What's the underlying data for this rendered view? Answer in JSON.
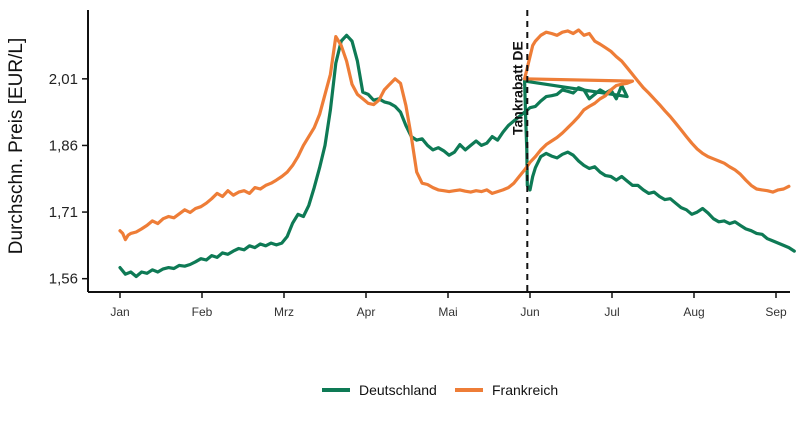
{
  "chart_data": {
    "type": "line",
    "title": "",
    "xlabel": "",
    "ylabel": "Durchschn. Preis [EUR/L]",
    "x_ticks": [
      "Jan",
      "Feb",
      "Mrz",
      "Apr",
      "Mai",
      "Jun",
      "Jul",
      "Aug",
      "Sep"
    ],
    "x_range_days": [
      -2,
      245
    ],
    "y_ticks": [
      1.56,
      1.71,
      1.86,
      2.01
    ],
    "y_tick_labels": [
      "1,56",
      "1,71",
      "1,86",
      "2,01"
    ],
    "ylim": [
      1.53,
      2.165
    ],
    "grid": false,
    "legend_position": "bottom",
    "annotation": {
      "label": "Tankrabatt DE",
      "x_day": 151
    },
    "series": [
      {
        "name": "Deutschland",
        "color": "#0e7a55",
        "points": [
          [
            0,
            1.585
          ],
          [
            2,
            1.57
          ],
          [
            4,
            1.575
          ],
          [
            6,
            1.565
          ],
          [
            8,
            1.575
          ],
          [
            10,
            1.572
          ],
          [
            12,
            1.58
          ],
          [
            14,
            1.575
          ],
          [
            16,
            1.582
          ],
          [
            18,
            1.585
          ],
          [
            20,
            1.583
          ],
          [
            22,
            1.59
          ],
          [
            24,
            1.588
          ],
          [
            26,
            1.592
          ],
          [
            28,
            1.598
          ],
          [
            30,
            1.605
          ],
          [
            32,
            1.602
          ],
          [
            34,
            1.612
          ],
          [
            36,
            1.608
          ],
          [
            38,
            1.618
          ],
          [
            40,
            1.615
          ],
          [
            42,
            1.622
          ],
          [
            44,
            1.628
          ],
          [
            46,
            1.625
          ],
          [
            48,
            1.634
          ],
          [
            50,
            1.63
          ],
          [
            52,
            1.638
          ],
          [
            54,
            1.634
          ],
          [
            56,
            1.64
          ],
          [
            58,
            1.636
          ],
          [
            60,
            1.64
          ],
          [
            62,
            1.655
          ],
          [
            64,
            1.685
          ],
          [
            66,
            1.705
          ],
          [
            68,
            1.7
          ],
          [
            70,
            1.725
          ],
          [
            72,
            1.765
          ],
          [
            74,
            1.81
          ],
          [
            76,
            1.86
          ],
          [
            78,
            1.94
          ],
          [
            80,
            2.045
          ],
          [
            82,
            2.095
          ],
          [
            84,
            2.108
          ],
          [
            86,
            2.095
          ],
          [
            88,
            2.05
          ],
          [
            90,
            1.98
          ],
          [
            92,
            1.975
          ],
          [
            94,
            1.962
          ],
          [
            96,
            1.965
          ],
          [
            98,
            1.958
          ],
          [
            100,
            1.955
          ],
          [
            102,
            1.948
          ],
          [
            104,
            1.935
          ],
          [
            106,
            1.905
          ],
          [
            108,
            1.88
          ],
          [
            110,
            1.872
          ],
          [
            112,
            1.875
          ],
          [
            114,
            1.86
          ],
          [
            116,
            1.85
          ],
          [
            118,
            1.855
          ],
          [
            120,
            1.848
          ],
          [
            122,
            1.838
          ],
          [
            124,
            1.845
          ],
          [
            126,
            1.862
          ],
          [
            128,
            1.85
          ],
          [
            130,
            1.86
          ],
          [
            132,
            1.87
          ],
          [
            134,
            1.86
          ],
          [
            136,
            1.865
          ],
          [
            138,
            1.88
          ],
          [
            140,
            1.872
          ],
          [
            142,
            1.89
          ],
          [
            144,
            1.905
          ],
          [
            146,
            1.915
          ],
          [
            148,
            1.925
          ],
          [
            150,
            1.935
          ],
          [
            152,
            1.945
          ],
          [
            154,
            1.948
          ],
          [
            156,
            1.96
          ],
          [
            158,
            1.97
          ],
          [
            160,
            1.972
          ],
          [
            162,
            1.975
          ],
          [
            164,
            1.985
          ],
          [
            166,
            1.982
          ],
          [
            168,
            1.978
          ],
          [
            170,
            1.99
          ],
          [
            172,
            1.985
          ],
          [
            174,
            1.965
          ],
          [
            176,
            1.975
          ],
          [
            178,
            1.985
          ],
          [
            180,
            1.978
          ],
          [
            182,
            1.985
          ],
          [
            184,
            1.965
          ],
          [
            186,
            1.995
          ],
          [
            188,
            1.97
          ],
          [
            150,
            2.005
          ],
          [
            150.4,
            1.92
          ],
          [
            150.8,
            1.85
          ],
          [
            151,
            1.77
          ],
          [
            152,
            1.76
          ],
          [
            153,
            1.79
          ],
          [
            154,
            1.81
          ],
          [
            156,
            1.835
          ],
          [
            158,
            1.842
          ],
          [
            160,
            1.836
          ],
          [
            162,
            1.832
          ],
          [
            164,
            1.84
          ],
          [
            166,
            1.845
          ],
          [
            168,
            1.838
          ],
          [
            170,
            1.825
          ],
          [
            172,
            1.815
          ],
          [
            174,
            1.808
          ],
          [
            176,
            1.812
          ],
          [
            178,
            1.8
          ],
          [
            180,
            1.792
          ],
          [
            182,
            1.79
          ],
          [
            184,
            1.782
          ],
          [
            186,
            1.79
          ],
          [
            188,
            1.78
          ],
          [
            190,
            1.77
          ],
          [
            192,
            1.77
          ],
          [
            194,
            1.76
          ],
          [
            196,
            1.752
          ],
          [
            198,
            1.755
          ],
          [
            200,
            1.745
          ],
          [
            202,
            1.738
          ],
          [
            204,
            1.74
          ],
          [
            206,
            1.73
          ],
          [
            208,
            1.72
          ],
          [
            210,
            1.715
          ],
          [
            212,
            1.705
          ],
          [
            214,
            1.71
          ],
          [
            216,
            1.718
          ],
          [
            218,
            1.708
          ],
          [
            220,
            1.695
          ],
          [
            222,
            1.688
          ],
          [
            224,
            1.69
          ],
          [
            226,
            1.684
          ],
          [
            228,
            1.688
          ],
          [
            230,
            1.68
          ],
          [
            232,
            1.672
          ],
          [
            234,
            1.668
          ],
          [
            236,
            1.662
          ],
          [
            238,
            1.66
          ],
          [
            240,
            1.65
          ],
          [
            242,
            1.645
          ],
          [
            244,
            1.64
          ],
          [
            246,
            1.635
          ],
          [
            248,
            1.63
          ],
          [
            250,
            1.622
          ]
        ]
      },
      {
        "name": "Frankreich",
        "color": "#ee7d37",
        "points": [
          [
            0,
            1.668
          ],
          [
            1,
            1.662
          ],
          [
            2,
            1.648
          ],
          [
            3,
            1.658
          ],
          [
            4,
            1.662
          ],
          [
            6,
            1.665
          ],
          [
            8,
            1.672
          ],
          [
            10,
            1.68
          ],
          [
            12,
            1.69
          ],
          [
            14,
            1.684
          ],
          [
            16,
            1.695
          ],
          [
            18,
            1.7
          ],
          [
            20,
            1.697
          ],
          [
            22,
            1.706
          ],
          [
            24,
            1.715
          ],
          [
            26,
            1.709
          ],
          [
            28,
            1.718
          ],
          [
            30,
            1.722
          ],
          [
            32,
            1.73
          ],
          [
            34,
            1.74
          ],
          [
            36,
            1.752
          ],
          [
            38,
            1.745
          ],
          [
            40,
            1.758
          ],
          [
            42,
            1.748
          ],
          [
            44,
            1.755
          ],
          [
            46,
            1.758
          ],
          [
            48,
            1.752
          ],
          [
            50,
            1.765
          ],
          [
            52,
            1.762
          ],
          [
            54,
            1.77
          ],
          [
            56,
            1.775
          ],
          [
            58,
            1.782
          ],
          [
            60,
            1.79
          ],
          [
            62,
            1.8
          ],
          [
            64,
            1.815
          ],
          [
            66,
            1.835
          ],
          [
            68,
            1.86
          ],
          [
            70,
            1.88
          ],
          [
            72,
            1.9
          ],
          [
            74,
            1.93
          ],
          [
            76,
            1.975
          ],
          [
            78,
            2.02
          ],
          [
            80,
            2.105
          ],
          [
            82,
            2.085
          ],
          [
            84,
            2.05
          ],
          [
            86,
            1.998
          ],
          [
            88,
            1.975
          ],
          [
            90,
            1.965
          ],
          [
            92,
            1.955
          ],
          [
            94,
            1.952
          ],
          [
            96,
            1.962
          ],
          [
            98,
            1.985
          ],
          [
            100,
            1.998
          ],
          [
            102,
            2.01
          ],
          [
            104,
            2.0
          ],
          [
            106,
            1.95
          ],
          [
            108,
            1.88
          ],
          [
            110,
            1.8
          ],
          [
            112,
            1.775
          ],
          [
            114,
            1.772
          ],
          [
            116,
            1.765
          ],
          [
            118,
            1.76
          ],
          [
            120,
            1.758
          ],
          [
            122,
            1.756
          ],
          [
            124,
            1.758
          ],
          [
            126,
            1.76
          ],
          [
            128,
            1.757
          ],
          [
            130,
            1.755
          ],
          [
            132,
            1.758
          ],
          [
            134,
            1.756
          ],
          [
            136,
            1.76
          ],
          [
            138,
            1.752
          ],
          [
            140,
            1.756
          ],
          [
            142,
            1.76
          ],
          [
            144,
            1.765
          ],
          [
            146,
            1.775
          ],
          [
            148,
            1.79
          ],
          [
            150,
            1.805
          ],
          [
            152,
            1.822
          ],
          [
            154,
            1.835
          ],
          [
            156,
            1.85
          ],
          [
            158,
            1.862
          ],
          [
            160,
            1.87
          ],
          [
            162,
            1.878
          ],
          [
            164,
            1.888
          ],
          [
            166,
            1.9
          ],
          [
            168,
            1.912
          ],
          [
            170,
            1.925
          ],
          [
            172,
            1.94
          ],
          [
            174,
            1.948
          ],
          [
            176,
            1.955
          ],
          [
            178,
            1.965
          ],
          [
            180,
            1.972
          ],
          [
            182,
            1.985
          ],
          [
            184,
            1.995
          ],
          [
            186,
            1.998
          ],
          [
            188,
            2.0
          ],
          [
            190,
            2.005
          ],
          [
            150,
            2.01
          ],
          [
            151,
            2.035
          ],
          [
            152,
            2.06
          ],
          [
            153,
            2.085
          ],
          [
            154,
            2.095
          ],
          [
            156,
            2.108
          ],
          [
            158,
            2.115
          ],
          [
            160,
            2.112
          ],
          [
            162,
            2.108
          ],
          [
            164,
            2.115
          ],
          [
            166,
            2.118
          ],
          [
            168,
            2.112
          ],
          [
            170,
            2.12
          ],
          [
            172,
            2.108
          ],
          [
            174,
            2.112
          ],
          [
            176,
            2.095
          ],
          [
            178,
            2.088
          ],
          [
            180,
            2.08
          ],
          [
            182,
            2.072
          ],
          [
            184,
            2.06
          ],
          [
            186,
            2.05
          ],
          [
            188,
            2.035
          ],
          [
            190,
            2.02
          ],
          [
            192,
            2.005
          ],
          [
            194,
            1.99
          ],
          [
            196,
            1.978
          ],
          [
            198,
            1.965
          ],
          [
            200,
            1.952
          ],
          [
            202,
            1.938
          ],
          [
            204,
            1.925
          ],
          [
            206,
            1.91
          ],
          [
            208,
            1.895
          ],
          [
            210,
            1.88
          ],
          [
            212,
            1.865
          ],
          [
            214,
            1.852
          ],
          [
            216,
            1.842
          ],
          [
            218,
            1.835
          ],
          [
            220,
            1.83
          ],
          [
            222,
            1.825
          ],
          [
            224,
            1.82
          ],
          [
            226,
            1.812
          ],
          [
            228,
            1.805
          ],
          [
            230,
            1.795
          ],
          [
            232,
            1.782
          ],
          [
            234,
            1.77
          ],
          [
            236,
            1.762
          ],
          [
            238,
            1.76
          ],
          [
            240,
            1.758
          ],
          [
            242,
            1.755
          ],
          [
            244,
            1.76
          ],
          [
            246,
            1.762
          ],
          [
            248,
            1.768
          ]
        ]
      }
    ]
  }
}
